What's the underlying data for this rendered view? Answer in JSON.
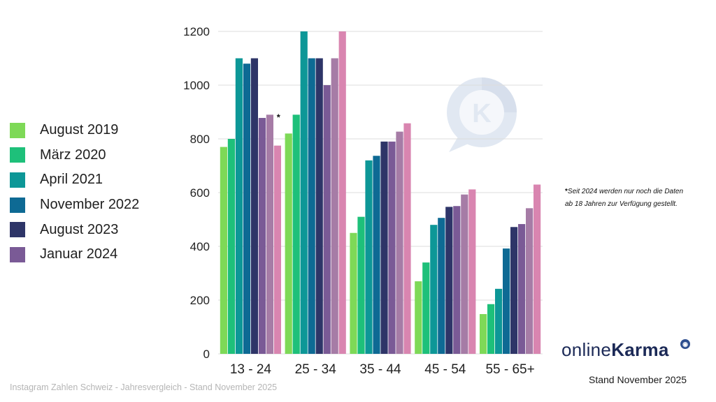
{
  "chart_data": {
    "type": "bar",
    "categories": [
      "13 - 24",
      "25 - 34",
      "35 - 44",
      "45 - 54",
      "55 - 65+"
    ],
    "series": [
      {
        "name": "August 2019",
        "color": "#7ed957",
        "values": [
          770,
          820,
          450,
          270,
          148
        ]
      },
      {
        "name": "März 2020",
        "color": "#1ec07a",
        "values": [
          800,
          890,
          510,
          340,
          185
        ]
      },
      {
        "name": "April 2021",
        "color": "#0d9797",
        "values": [
          1100,
          1200,
          720,
          480,
          242
        ]
      },
      {
        "name": "November 2022",
        "color": "#0e6a94",
        "values": [
          1080,
          1100,
          737,
          506,
          392
        ]
      },
      {
        "name": "August 2023",
        "color": "#2e3568",
        "values": [
          1100,
          1100,
          790,
          547,
          472
        ]
      },
      {
        "name": "Januar 2024",
        "color": "#7a5a96",
        "values": [
          878,
          1000,
          790,
          550,
          483
        ]
      },
      {
        "color": "#a67ca6",
        "values": [
          890,
          1100,
          827,
          593,
          542
        ]
      },
      {
        "color": "#d985b0",
        "values": [
          775,
          1200,
          858,
          612,
          630
        ]
      }
    ],
    "yticks": [
      "0",
      "200",
      "400",
      "600",
      "800",
      "1000",
      "1200"
    ],
    "ylim": [
      0,
      1200
    ],
    "grid": true,
    "legend_position": "left",
    "annotations": [
      {
        "category": "13 - 24",
        "text": "*"
      }
    ]
  },
  "footnote": {
    "marker": "*",
    "text": "Seit 2024 werden nur noch die Daten ab 18 Jahren zur Verfügung gestellt."
  },
  "brand": {
    "light": "online",
    "bold": "Karma"
  },
  "stand": "Stand November 2025",
  "footer": "Instagram Zahlen Schweiz - Jahresvergleich - Stand November 2025",
  "watermark_icon": "speech-bubble-k-logo-icon"
}
